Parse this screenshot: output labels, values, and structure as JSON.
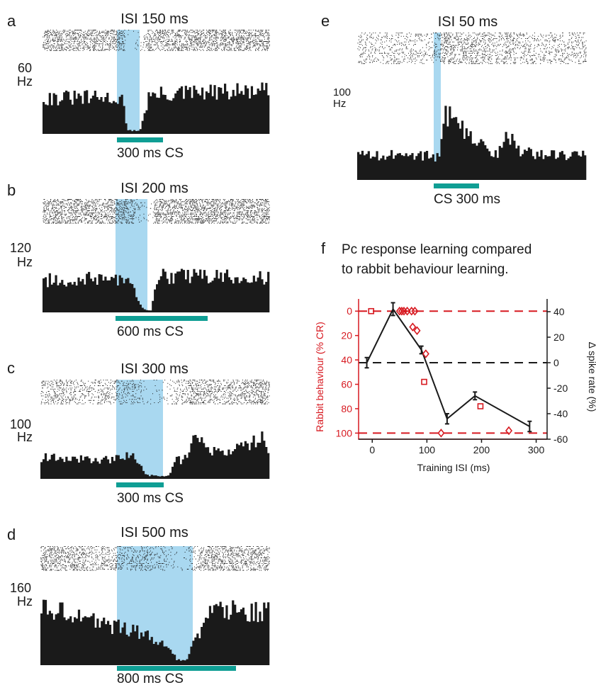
{
  "colors": {
    "histogram": "#1a1a1a",
    "raster": "#1a1a1a",
    "cs_shade": "#a9d8f0",
    "cs_bar": "#0f9e94",
    "rabbit": "#d71920",
    "pc": "#1a1a1a"
  },
  "panels": {
    "a": {
      "letter": "a",
      "title": "ISI 150 ms",
      "ymax_label": "60",
      "unit": "Hz",
      "cs_label": "300 ms CS"
    },
    "b": {
      "letter": "b",
      "title": "ISI 200 ms",
      "ymax_label": "120",
      "unit": "Hz",
      "cs_label": "600 ms CS"
    },
    "c": {
      "letter": "c",
      "title": "ISI 300 ms",
      "ymax_label": "100",
      "unit": "Hz",
      "cs_label": "300 ms CS"
    },
    "d": {
      "letter": "d",
      "title": "ISI 500 ms",
      "ymax_label": "160",
      "unit": "Hz",
      "cs_label": "800 ms CS"
    },
    "e": {
      "letter": "e",
      "title": "ISI 50 ms",
      "ymax_label": "100",
      "unit": "Hz",
      "cs_label": "CS 300 ms"
    },
    "f": {
      "letter": "f",
      "title_line1": "Pc response learning compared",
      "title_line2": "to rabbit behaviour learning."
    }
  },
  "chart_data": [
    {
      "panel": "a",
      "type": "bar",
      "title": "ISI 150 ms",
      "ylabel": "Hz",
      "ylim": [
        0,
        60
      ],
      "cs_ms": 300,
      "isi_ms": 150,
      "profile_x": [
        0,
        0.32,
        0.36,
        0.37,
        0.43,
        0.47,
        0.62,
        1.0
      ],
      "profile_y": [
        32,
        32,
        30,
        3,
        3,
        34,
        36,
        38
      ]
    },
    {
      "panel": "b",
      "type": "bar",
      "title": "ISI 200 ms",
      "ylabel": "Hz",
      "ylim": [
        0,
        120
      ],
      "cs_ms": 600,
      "isi_ms": 200,
      "profile_x": [
        0,
        0.33,
        0.37,
        0.4,
        0.44,
        0.46,
        0.48,
        0.5,
        0.55,
        0.7,
        1.0
      ],
      "profile_y": [
        55,
        58,
        55,
        40,
        8,
        3,
        3,
        60,
        62,
        62,
        60
      ]
    },
    {
      "panel": "c",
      "type": "bar",
      "title": "ISI 300 ms",
      "ylabel": "Hz",
      "ylim": [
        0,
        100
      ],
      "cs_ms": 300,
      "isi_ms": 300,
      "profile_x": [
        0,
        0.3,
        0.4,
        0.43,
        0.46,
        0.52,
        0.56,
        0.6,
        0.62,
        0.68,
        0.74,
        0.8,
        0.9,
        0.97,
        1.0
      ],
      "profile_y": [
        36,
        32,
        38,
        30,
        6,
        5,
        5,
        35,
        30,
        68,
        48,
        40,
        55,
        72,
        40
      ]
    },
    {
      "panel": "d",
      "type": "bar",
      "title": "ISI 500 ms",
      "ylabel": "Hz",
      "ylim": [
        0,
        160
      ],
      "cs_ms": 800,
      "isi_ms": 500,
      "profile_x": [
        0,
        0.1,
        0.2,
        0.33,
        0.45,
        0.55,
        0.6,
        0.64,
        0.68,
        0.75,
        0.8,
        1.0
      ],
      "profile_y": [
        105,
        110,
        88,
        75,
        60,
        35,
        10,
        12,
        50,
        125,
        105,
        100
      ]
    },
    {
      "panel": "e",
      "type": "bar",
      "title": "ISI 50 ms",
      "ylabel": "Hz",
      "ylim": [
        0,
        100
      ],
      "cs_ms": 300,
      "isi_ms": 50,
      "profile_x": [
        0,
        0.33,
        0.36,
        0.38,
        0.4,
        0.43,
        0.45,
        0.48,
        0.52,
        0.56,
        0.6,
        0.62,
        0.66,
        0.7,
        0.8,
        1.0
      ],
      "profile_y": [
        28,
        27,
        24,
        75,
        70,
        58,
        64,
        55,
        45,
        38,
        30,
        30,
        55,
        32,
        28,
        27
      ]
    },
    {
      "panel": "f",
      "type": "line",
      "title": "Pc response learning compared to rabbit behaviour learning.",
      "xlabel": "Training ISI (ms)",
      "ylabel_left": "Rabbit behaviour (% CR)",
      "ylabel_right": "Δ spike rate (%)",
      "xlim": [
        -25,
        320
      ],
      "ylim_left": [
        105,
        -10
      ],
      "ylim_right": [
        -60,
        50
      ],
      "xticks": [
        0,
        100,
        200,
        300
      ],
      "yticks_left": [
        0,
        20,
        40,
        60,
        80,
        100
      ],
      "yticks_right": [
        40,
        20,
        0,
        -20,
        -40,
        -60
      ],
      "series": [
        {
          "name": "",
          "axis": "right",
          "style": "line-errorbars",
          "x": [
            -10,
            38,
            90,
            137,
            188,
            288
          ],
          "y": [
            0,
            42,
            10,
            -44,
            -26,
            -50
          ],
          "err": [
            4,
            5,
            3,
            4,
            3,
            4
          ]
        },
        {
          "name": "",
          "axis": "left",
          "style": "markers",
          "points": [
            {
              "x": -2,
              "y": 0,
              "m": "square"
            },
            {
              "x": 50,
              "y": 0,
              "m": "diamond"
            },
            {
              "x": 54,
              "y": 0,
              "m": "diamond"
            },
            {
              "x": 58,
              "y": 0,
              "m": "diamond"
            },
            {
              "x": 64,
              "y": 0,
              "m": "diamond"
            },
            {
              "x": 72,
              "y": 0,
              "m": "diamond"
            },
            {
              "x": 78,
              "y": 0,
              "m": "diamond"
            },
            {
              "x": 74,
              "y": 13,
              "m": "diamond"
            },
            {
              "x": 82,
              "y": 16,
              "m": "diamond"
            },
            {
              "x": 98,
              "y": 35,
              "m": "diamond"
            },
            {
              "x": 95,
              "y": 58,
              "m": "square"
            },
            {
              "x": 126,
              "y": 100,
              "m": "diamond"
            },
            {
              "x": 198,
              "y": 78,
              "m": "square"
            },
            {
              "x": 250,
              "y": 98,
              "m": "diamond"
            }
          ]
        }
      ],
      "reference_lines_left": [
        0,
        100
      ],
      "reference_lines_right": [
        0
      ]
    }
  ]
}
